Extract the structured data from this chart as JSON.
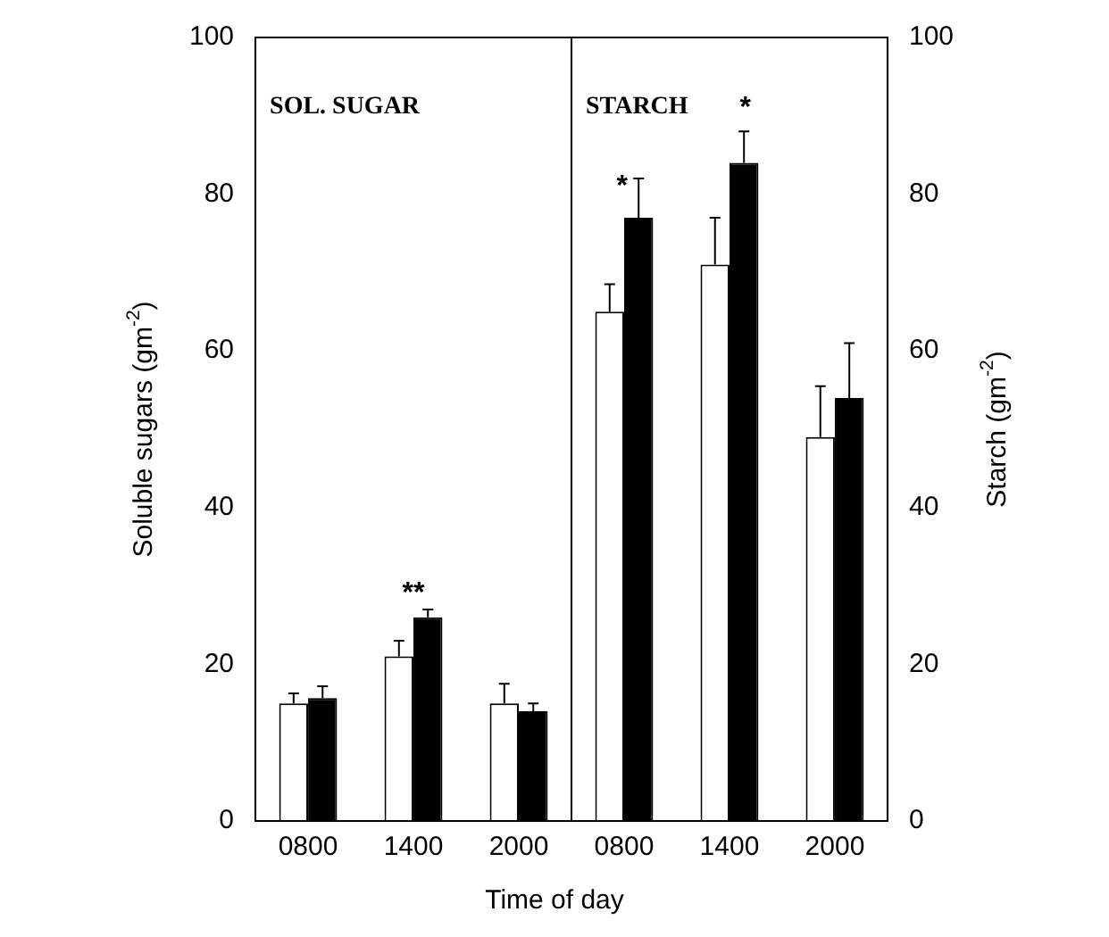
{
  "chart_data": [
    {
      "type": "bar",
      "xlabel": "Time of day",
      "ylabel": "Soluble sugars (gm$^{-2}$)",
      "categories": [
        "0800",
        "1400",
        "2000"
      ],
      "series": [
        {
          "color": "#ffffff",
          "values": [
            15,
            21,
            15
          ],
          "errors": [
            [
              15,
              16.3
            ],
            [
              21,
              23
            ],
            [
              15,
              17.5
            ]
          ]
        },
        {
          "color": "#000000",
          "values": [
            15.7,
            26,
            14
          ],
          "errors": [
            [
              15.7,
              17.2
            ],
            [
              26,
              27
            ],
            [
              14,
              15
            ]
          ]
        }
      ],
      "ylim": [
        0,
        100
      ],
      "yticks": [
        0,
        20,
        40,
        60,
        80,
        100
      ],
      "annotations": [
        "SOL. SUGAR",
        "**"
      ]
    },
    {
      "type": "bar",
      "ylabel": "Starch (gm$^{-2}$)",
      "categories": [
        "0800",
        "1400",
        "2000"
      ],
      "series": [
        {
          "color": "#ffffff",
          "values": [
            65,
            71,
            49
          ],
          "errors": [
            [
              65,
              68.5
            ],
            [
              71,
              77
            ],
            [
              49,
              55.5
            ]
          ]
        },
        {
          "color": "#000000",
          "values": [
            77,
            84,
            54
          ],
          "errors": [
            [
              77,
              82
            ],
            [
              84,
              88
            ],
            [
              54,
              61
            ]
          ]
        }
      ],
      "ylim": [
        0,
        100
      ],
      "yticks": [
        0,
        20,
        40,
        60,
        80,
        100
      ],
      "annotations": [
        "STARCH",
        "*",
        "*"
      ]
    }
  ]
}
